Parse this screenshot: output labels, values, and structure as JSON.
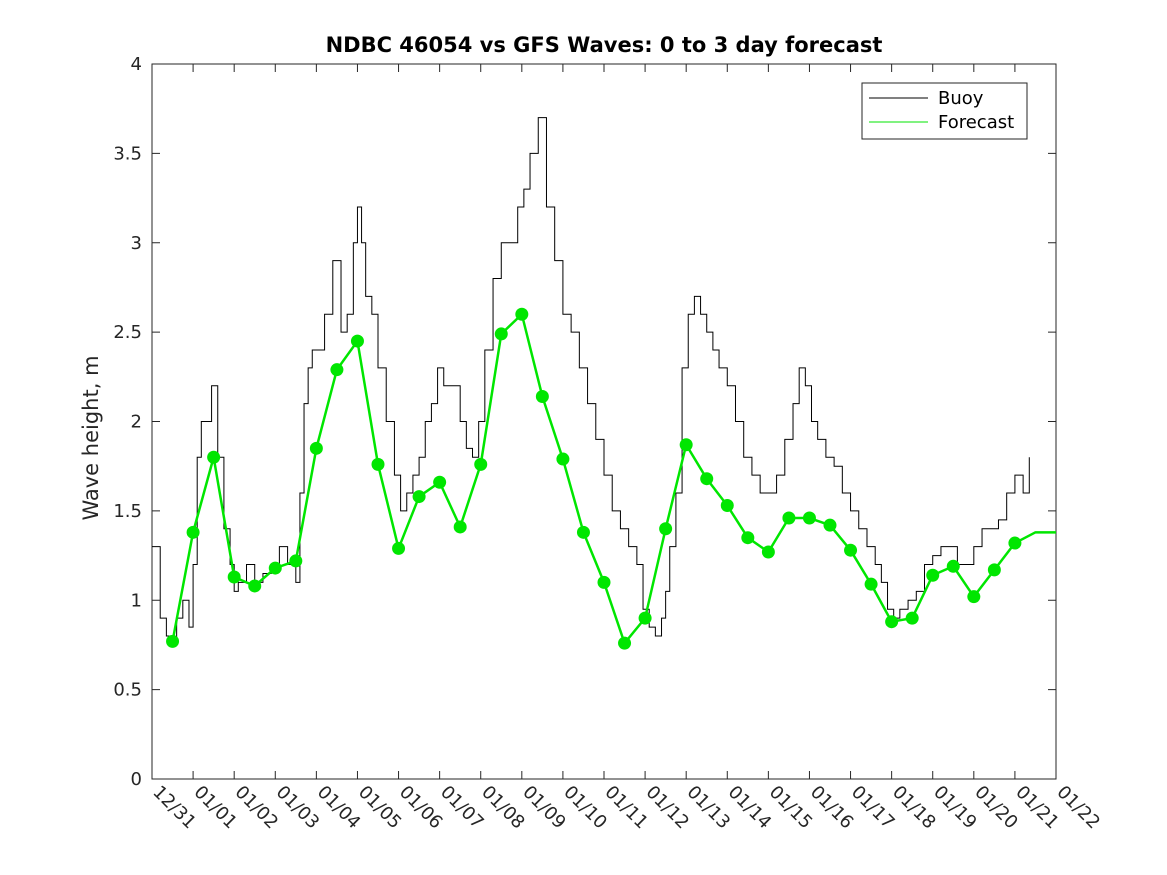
{
  "chart_data": {
    "type": "line",
    "title": "NDBC 46054 vs GFS Waves: 0 to 3 day forecast",
    "ylabel": "Wave height, m",
    "xlabel": "",
    "ylim": [
      0,
      4
    ],
    "xlim": [
      0,
      22
    ],
    "yticks": [
      0,
      0.5,
      1,
      1.5,
      2,
      2.5,
      3,
      3.5,
      4
    ],
    "ytick_labels": [
      "0",
      "0.5",
      "1",
      "1.5",
      "2",
      "2.5",
      "3",
      "3.5",
      "4"
    ],
    "xticks": [
      0,
      1,
      2,
      3,
      4,
      5,
      6,
      7,
      8,
      9,
      10,
      11,
      12,
      13,
      14,
      15,
      16,
      17,
      18,
      19,
      20,
      21,
      22
    ],
    "xtick_labels": [
      "12/31",
      "01/01",
      "01/02",
      "01/03",
      "01/04",
      "01/05",
      "01/06",
      "01/07",
      "01/08",
      "01/09",
      "01/10",
      "01/11",
      "01/12",
      "01/13",
      "01/14",
      "01/15",
      "01/16",
      "01/17",
      "01/18",
      "01/19",
      "01/20",
      "01/21",
      "01/22"
    ],
    "legend": {
      "position": "top-right",
      "entries": [
        {
          "label": "Buoy",
          "color": "#000000"
        },
        {
          "label": "Forecast",
          "color": "#00e600"
        }
      ]
    },
    "series": [
      {
        "name": "Buoy",
        "color": "#000000",
        "x": [
          0,
          0.2,
          0.35,
          0.5,
          0.6,
          0.75,
          0.9,
          1.0,
          1.1,
          1.2,
          1.3,
          1.45,
          1.6,
          1.75,
          1.9,
          2.0,
          2.1,
          2.3,
          2.5,
          2.7,
          2.9,
          3.1,
          3.3,
          3.5,
          3.6,
          3.7,
          3.8,
          3.9,
          4.0,
          4.2,
          4.4,
          4.6,
          4.75,
          4.9,
          5.0,
          5.1,
          5.2,
          5.35,
          5.5,
          5.7,
          5.9,
          6.05,
          6.2,
          6.35,
          6.5,
          6.65,
          6.8,
          6.95,
          7.1,
          7.3,
          7.5,
          7.65,
          7.8,
          7.95,
          8.1,
          8.3,
          8.5,
          8.7,
          8.9,
          9.05,
          9.2,
          9.4,
          9.6,
          9.8,
          10.0,
          10.2,
          10.4,
          10.6,
          10.8,
          11.0,
          11.2,
          11.4,
          11.6,
          11.8,
          11.95,
          12.1,
          12.25,
          12.4,
          12.5,
          12.6,
          12.75,
          12.9,
          13.05,
          13.2,
          13.35,
          13.5,
          13.65,
          13.8,
          14.0,
          14.2,
          14.4,
          14.6,
          14.8,
          15.0,
          15.2,
          15.4,
          15.6,
          15.75,
          15.9,
          16.05,
          16.2,
          16.4,
          16.6,
          16.8,
          17.0,
          17.2,
          17.4,
          17.6,
          17.75,
          17.9,
          18.05,
          18.2,
          18.4,
          18.6,
          18.8,
          19.0,
          19.2,
          19.4,
          19.6,
          19.8,
          20.0,
          20.2,
          20.4,
          20.6,
          20.8,
          21.0,
          21.2,
          21.35
        ],
        "values": [
          1.3,
          0.9,
          0.8,
          0.75,
          0.9,
          1.0,
          0.85,
          1.2,
          1.8,
          2.0,
          2.0,
          2.2,
          1.8,
          1.4,
          1.2,
          1.05,
          1.1,
          1.2,
          1.1,
          1.15,
          1.2,
          1.3,
          1.2,
          1.1,
          1.6,
          2.1,
          2.3,
          2.4,
          2.4,
          2.6,
          2.9,
          2.5,
          2.6,
          3.0,
          3.2,
          3.0,
          2.7,
          2.6,
          2.3,
          2.0,
          1.7,
          1.5,
          1.6,
          1.7,
          1.8,
          2.0,
          2.1,
          2.3,
          2.2,
          2.2,
          2.0,
          1.85,
          1.8,
          2.0,
          2.4,
          2.8,
          3.0,
          3.0,
          3.2,
          3.3,
          3.5,
          3.7,
          3.2,
          2.9,
          2.6,
          2.5,
          2.3,
          2.1,
          1.9,
          1.7,
          1.5,
          1.4,
          1.3,
          1.2,
          0.95,
          0.85,
          0.8,
          0.9,
          1.05,
          1.3,
          1.6,
          2.3,
          2.6,
          2.7,
          2.6,
          2.5,
          2.4,
          2.3,
          2.2,
          2.0,
          1.8,
          1.7,
          1.6,
          1.6,
          1.7,
          1.9,
          2.1,
          2.3,
          2.2,
          2.0,
          1.9,
          1.8,
          1.75,
          1.6,
          1.5,
          1.4,
          1.3,
          1.2,
          1.1,
          0.95,
          0.9,
          0.95,
          1.0,
          1.05,
          1.2,
          1.25,
          1.3,
          1.3,
          1.2,
          1.2,
          1.3,
          1.4,
          1.4,
          1.45,
          1.6,
          1.7,
          1.6,
          1.8
        ]
      },
      {
        "name": "Forecast",
        "color": "#00e600",
        "x": [
          0.5,
          1.0,
          1.5,
          2.0,
          2.5,
          3.0,
          3.5,
          4.0,
          4.5,
          5.0,
          5.5,
          6.0,
          6.5,
          7.0,
          7.5,
          8.0,
          8.5,
          9.0,
          9.5,
          10.0,
          10.5,
          11.0,
          11.5,
          12.0,
          12.5,
          13.0,
          13.5,
          14.0,
          14.5,
          15.0,
          15.5,
          16.0,
          16.5,
          17.0,
          17.5,
          18.0,
          18.5,
          19.0,
          19.5,
          20.0,
          20.5,
          21.0,
          21.5,
          22.0
        ],
        "values": [
          0.77,
          1.38,
          1.8,
          1.13,
          1.08,
          1.18,
          1.22,
          1.85,
          2.29,
          2.45,
          1.76,
          1.29,
          1.58,
          1.66,
          1.41,
          1.76,
          2.49,
          2.6,
          2.14,
          1.79,
          1.38,
          1.1,
          0.76,
          0.9,
          1.4,
          1.87,
          1.68,
          1.53,
          1.35,
          1.27,
          1.46,
          1.46,
          1.42,
          1.28,
          1.09,
          0.88,
          0.9,
          1.14,
          1.19,
          1.02,
          1.17,
          1.32,
          1.38,
          1.38
        ]
      }
    ]
  }
}
